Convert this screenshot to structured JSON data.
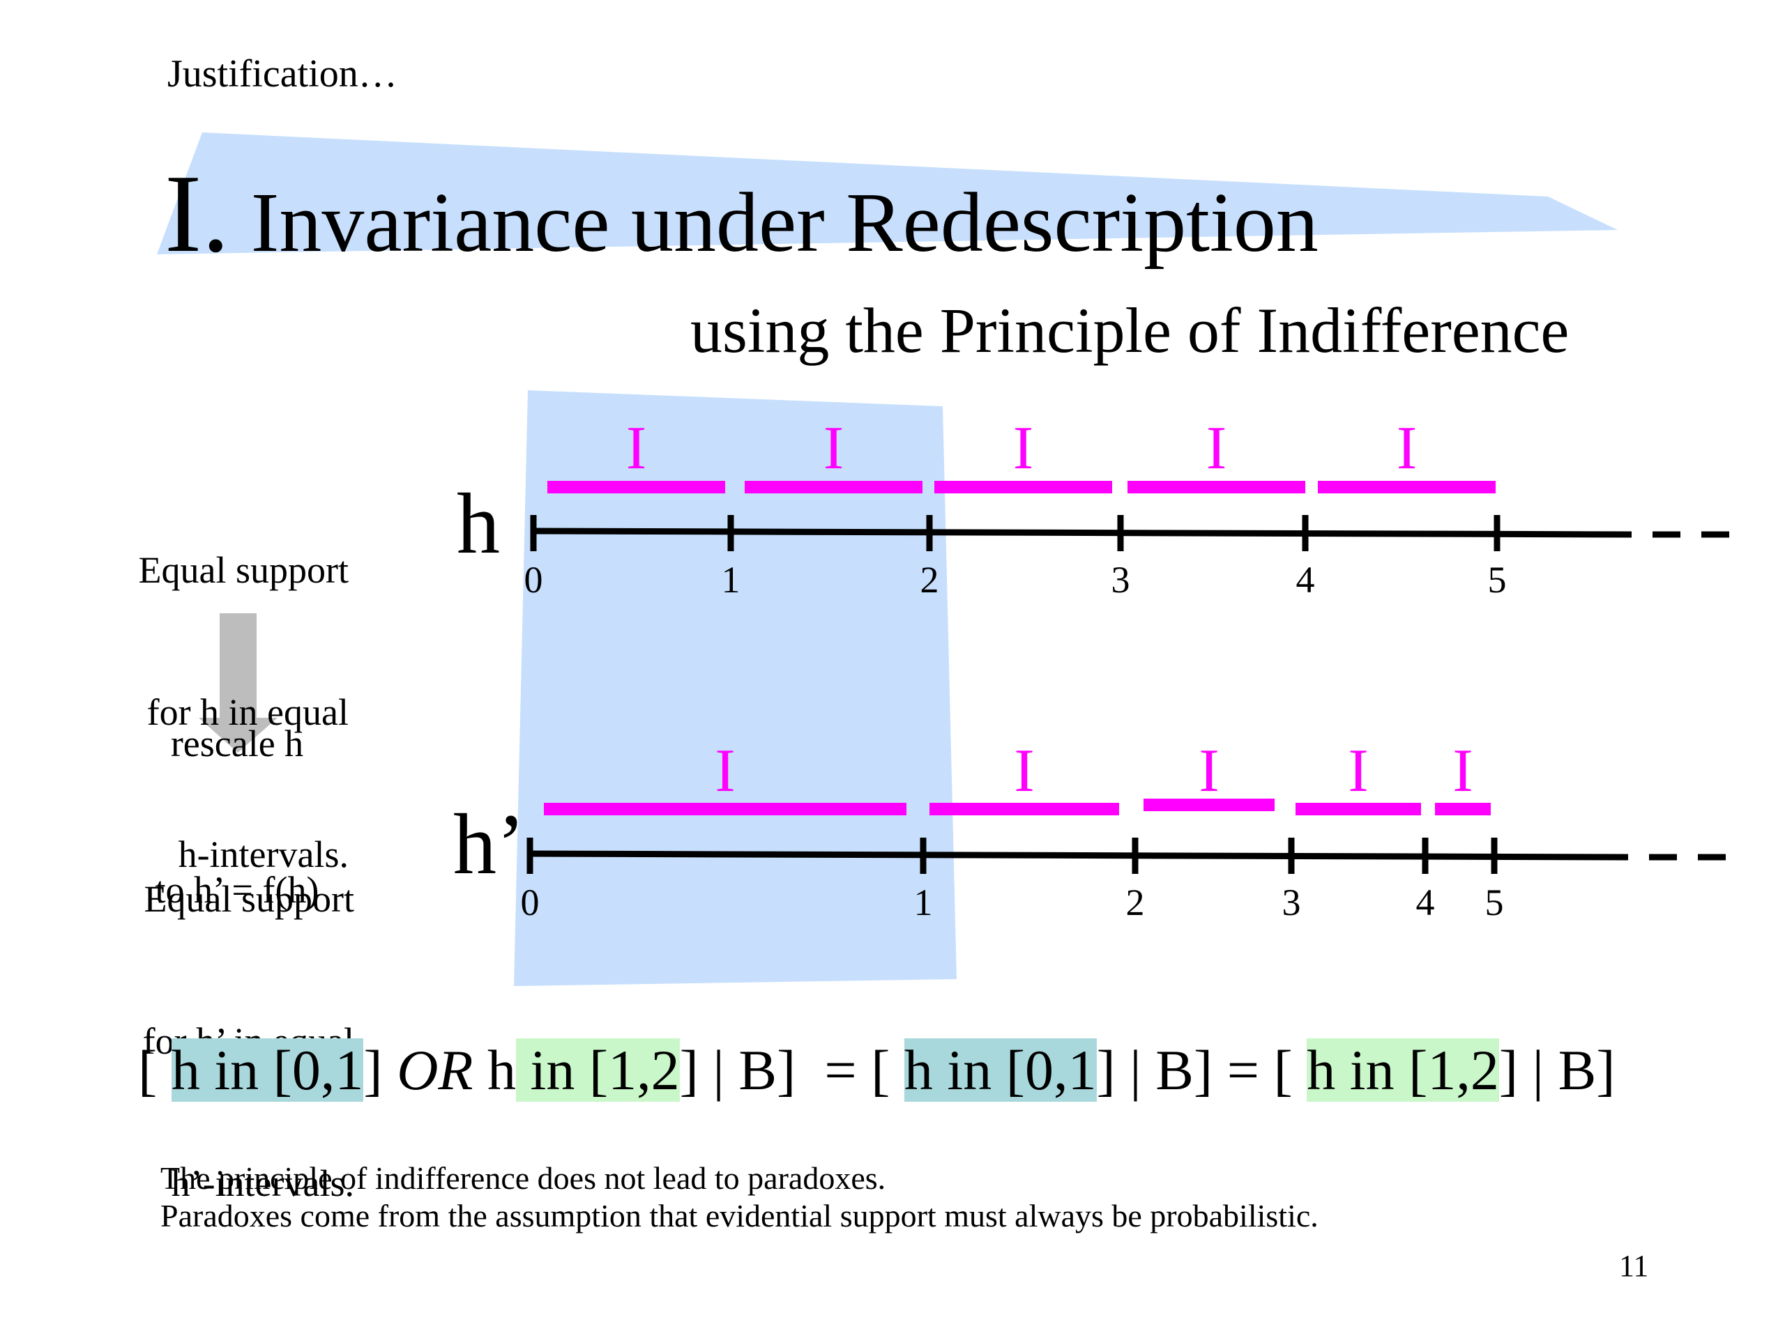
{
  "slide": {
    "kicker": "Justification…",
    "title_numeral": "I.",
    "title_text": " Invariance under Redescription",
    "subtitle": "using the Principle of Indifference",
    "page_number": "11"
  },
  "side_labels": {
    "top": [
      "Equal support",
      "for h in equal",
      "h-intervals."
    ],
    "arrow_text": [
      "rescale h",
      "to h’ = f(h)"
    ],
    "bottom": [
      "Equal support",
      "for h’ in equal",
      "h’-intervals."
    ]
  },
  "axes": {
    "top": {
      "var_label": "h",
      "ticks": [
        "0",
        "1",
        "2",
        "3",
        "4",
        "5"
      ],
      "interval_marker": "I",
      "interval_count": 5
    },
    "bottom": {
      "var_label": "h’",
      "ticks": [
        "0",
        "1",
        "2",
        "3",
        "4",
        "5"
      ],
      "interval_marker": "I",
      "interval_count": 5
    }
  },
  "equation": {
    "parts": [
      {
        "text": "[ ",
        "style": "plain"
      },
      {
        "text": "h in [0,1",
        "style": "blue"
      },
      {
        "text": "] ",
        "style": "plain"
      },
      {
        "text": "OR",
        "style": "italic"
      },
      {
        "text": " h",
        "style": "plain"
      },
      {
        "text": " in [1,2",
        "style": "green"
      },
      {
        "text": "] | B]  = [ ",
        "style": "plain"
      },
      {
        "text": "h in [0,1",
        "style": "blue"
      },
      {
        "text": "] | B] = [ ",
        "style": "plain"
      },
      {
        "text": "h in [1,2",
        "style": "green"
      },
      {
        "text": "] | B]",
        "style": "plain"
      }
    ]
  },
  "footnote": {
    "line1": "The principle of indifference does not lead to paradoxes.",
    "line2": "Paradoxes come from the assumption that evidential support must always be probabilistic."
  },
  "colors": {
    "highlight_blue": "#c7dffd",
    "interval_magenta": "#ff00ff",
    "arrow_gray": "#bdbdbd",
    "eq_blue": "#a9d8dc",
    "eq_green": "#c9f7c9"
  }
}
